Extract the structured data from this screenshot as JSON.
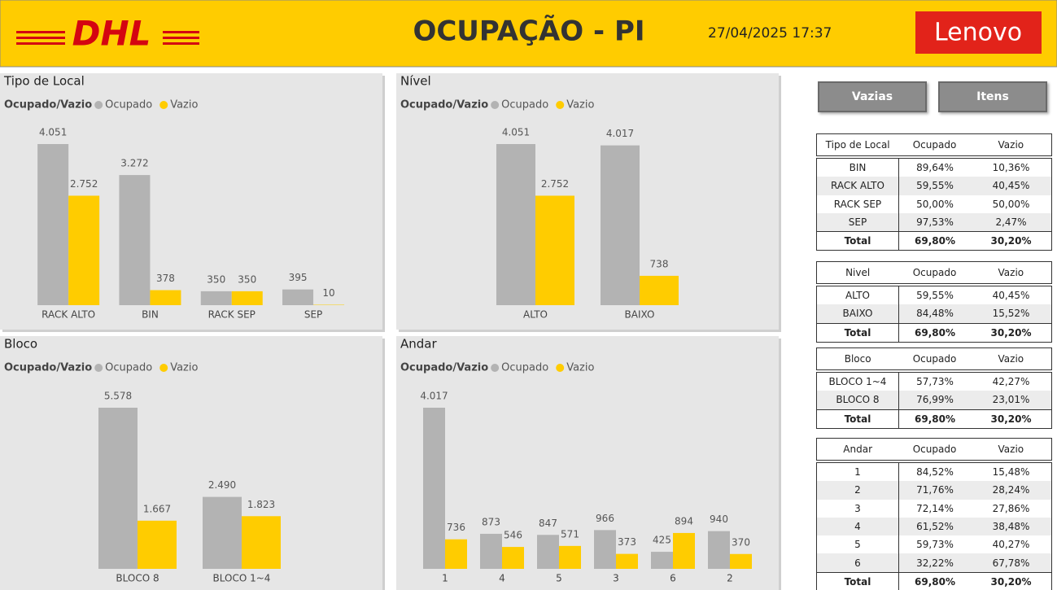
{
  "header": {
    "logo_left": "DHL",
    "title": "OCUPAÇÃO - PI",
    "datetime": "27/04/2025 17:37",
    "logo_right": "Lenovo"
  },
  "buttons": [
    "Vazias",
    "Itens"
  ],
  "chart_data": [
    {
      "type": "bar",
      "title": "Tipo de Local",
      "legend_title": "Ocupado/Vazio",
      "categories": [
        "RACK ALTO",
        "BIN",
        "RACK SEP",
        "SEP"
      ],
      "series": [
        {
          "name": "Ocupado",
          "color": "#b3b3b3",
          "values": [
            4051,
            3272,
            350,
            395
          ],
          "value_labels": [
            "4.051",
            "3.272",
            "350",
            "395"
          ]
        },
        {
          "name": "Vazio",
          "color": "#ffcc00",
          "values": [
            2752,
            378,
            350,
            10
          ],
          "value_labels": [
            "2.752",
            "378",
            "350",
            "10"
          ]
        }
      ]
    },
    {
      "type": "bar",
      "title": "Nível",
      "legend_title": "Ocupado/Vazio",
      "categories": [
        "ALTO",
        "BAIXO"
      ],
      "series": [
        {
          "name": "Ocupado",
          "color": "#b3b3b3",
          "values": [
            4051,
            4017
          ],
          "value_labels": [
            "4.051",
            "4.017"
          ]
        },
        {
          "name": "Vazio",
          "color": "#ffcc00",
          "values": [
            2752,
            738
          ],
          "value_labels": [
            "2.752",
            "738"
          ]
        }
      ]
    },
    {
      "type": "bar",
      "title": "Bloco",
      "legend_title": "Ocupado/Vazio",
      "categories": [
        "BLOCO 8",
        "BLOCO 1~4"
      ],
      "series": [
        {
          "name": "Ocupado",
          "color": "#b3b3b3",
          "values": [
            5578,
            2490
          ],
          "value_labels": [
            "5.578",
            "2.490"
          ]
        },
        {
          "name": "Vazio",
          "color": "#ffcc00",
          "values": [
            1667,
            1823
          ],
          "value_labels": [
            "1.667",
            "1.823"
          ]
        }
      ]
    },
    {
      "type": "bar",
      "title": "Andar",
      "legend_title": "Ocupado/Vazio",
      "categories": [
        "1",
        "4",
        "5",
        "3",
        "6",
        "2"
      ],
      "series": [
        {
          "name": "Ocupado",
          "color": "#b3b3b3",
          "values": [
            4017,
            873,
            847,
            966,
            425,
            940
          ],
          "value_labels": [
            "4.017",
            "873",
            "847",
            "966",
            "425",
            "940"
          ]
        },
        {
          "name": "Vazio",
          "color": "#ffcc00",
          "values": [
            736,
            546,
            571,
            373,
            894,
            370
          ],
          "value_labels": [
            "736",
            "546",
            "571",
            "373",
            "894",
            "370"
          ]
        }
      ]
    }
  ],
  "tables": [
    {
      "columns": [
        "Tipo de Local",
        "Ocupado",
        "Vazio"
      ],
      "rows": [
        [
          "BIN",
          "89,64%",
          "10,36%"
        ],
        [
          "RACK ALTO",
          "59,55%",
          "40,45%"
        ],
        [
          "RACK SEP",
          "50,00%",
          "50,00%"
        ],
        [
          "SEP",
          "97,53%",
          "2,47%"
        ]
      ],
      "total": [
        "Total",
        "69,80%",
        "30,20%"
      ]
    },
    {
      "columns": [
        "Nivel",
        "Ocupado",
        "Vazio"
      ],
      "rows": [
        [
          "ALTO",
          "59,55%",
          "40,45%"
        ],
        [
          "BAIXO",
          "84,48%",
          "15,52%"
        ]
      ],
      "total": [
        "Total",
        "69,80%",
        "30,20%"
      ]
    },
    {
      "columns": [
        "Bloco",
        "Ocupado",
        "Vazio"
      ],
      "rows": [
        [
          "BLOCO 1~4",
          "57,73%",
          "42,27%"
        ],
        [
          "BLOCO 8",
          "76,99%",
          "23,01%"
        ]
      ],
      "total": [
        "Total",
        "69,80%",
        "30,20%"
      ]
    },
    {
      "columns": [
        "Andar",
        "Ocupado",
        "Vazio"
      ],
      "rows": [
        [
          "1",
          "84,52%",
          "15,48%"
        ],
        [
          "2",
          "71,76%",
          "28,24%"
        ],
        [
          "3",
          "72,14%",
          "27,86%"
        ],
        [
          "4",
          "61,52%",
          "38,48%"
        ],
        [
          "5",
          "59,73%",
          "40,27%"
        ],
        [
          "6",
          "32,22%",
          "67,78%"
        ]
      ],
      "total": [
        "Total",
        "69,80%",
        "30,20%"
      ]
    }
  ]
}
